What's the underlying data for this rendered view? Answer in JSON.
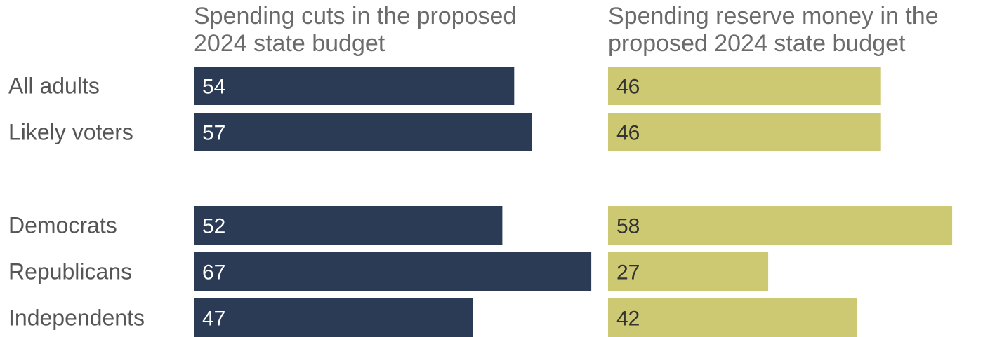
{
  "chart_data": [
    {
      "type": "bar",
      "orientation": "horizontal",
      "title_lines": [
        "Spending cuts in the proposed",
        "2024 state budget"
      ],
      "categories": [
        "All adults",
        "Likely voters",
        "Democrats",
        "Republicans",
        "Independents"
      ],
      "values": [
        54,
        57,
        52,
        67,
        47
      ],
      "value_labels": [
        "54",
        "57",
        "52",
        "67",
        "47"
      ],
      "color": "#2b3a55",
      "label_color": "#ffffff",
      "xlim": [
        0,
        100
      ],
      "grid": false
    },
    {
      "type": "bar",
      "orientation": "horizontal",
      "title_lines": [
        "Spending reserve money in the",
        "proposed 2024 state budget"
      ],
      "categories": [
        "All adults",
        "Likely voters",
        "Democrats",
        "Republicans",
        "Independents"
      ],
      "values": [
        46,
        46,
        58,
        27,
        42
      ],
      "value_labels": [
        "46",
        "46",
        "58",
        "27",
        "42"
      ],
      "color": "#cdc973",
      "label_color": "#333333",
      "xlim": [
        0,
        100
      ],
      "grid": false
    }
  ],
  "groups": [
    [
      "All adults",
      "Likely voters"
    ],
    [
      "Democrats",
      "Republicans",
      "Independents"
    ]
  ]
}
